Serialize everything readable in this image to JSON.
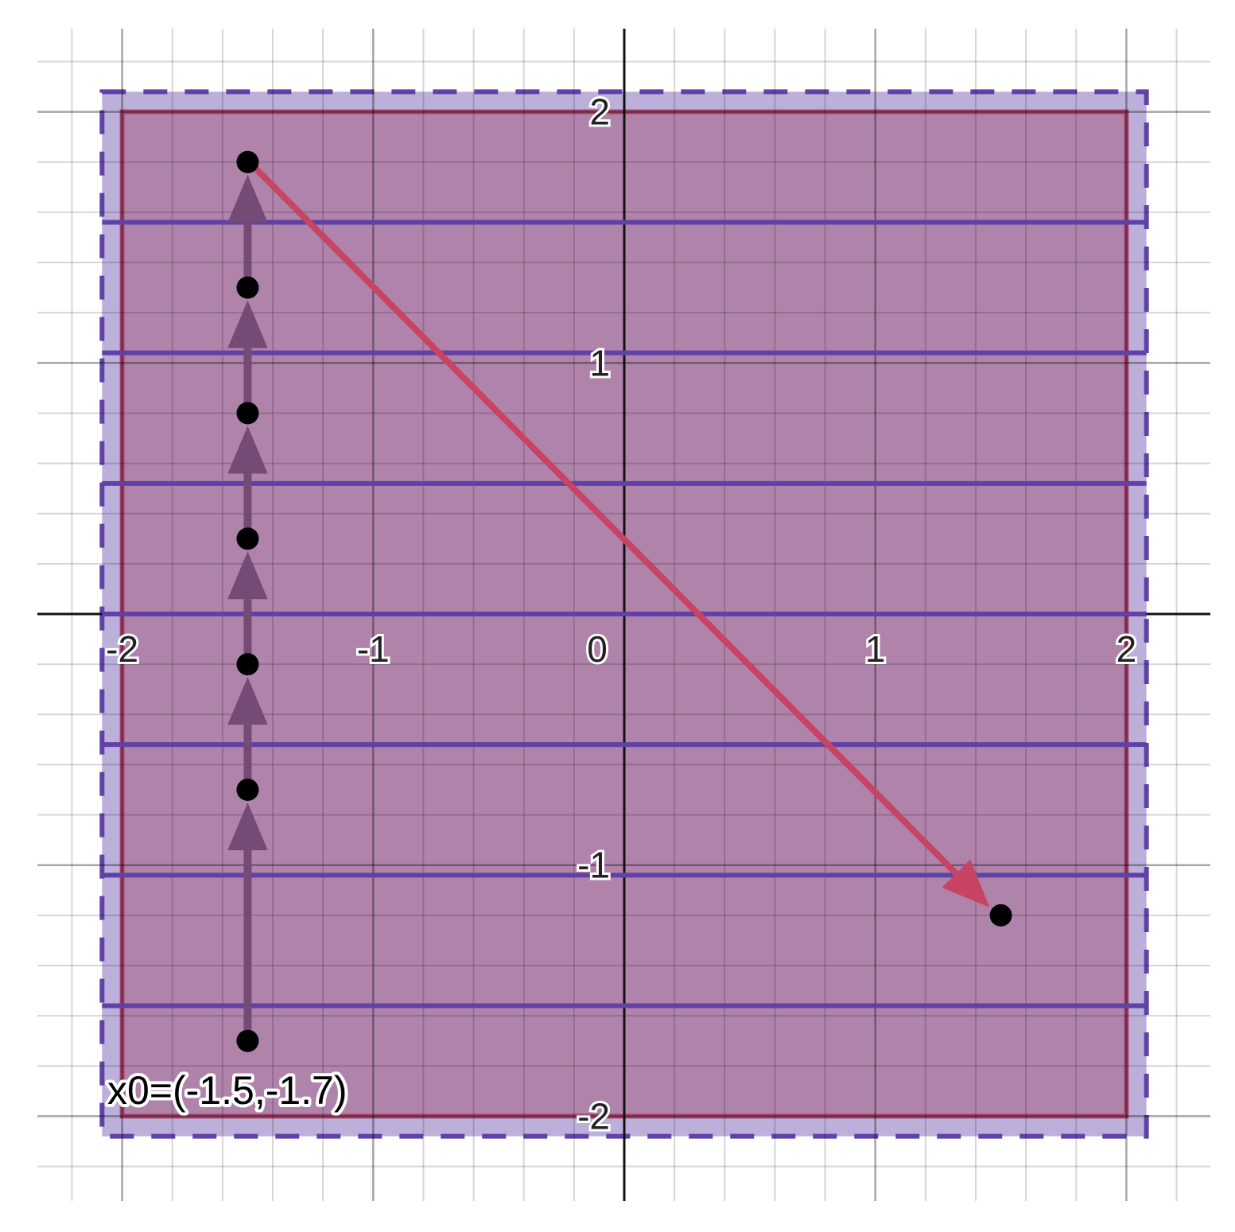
{
  "chart_data": {
    "type": "scatter",
    "xlim": [
      -2.2,
      2.33
    ],
    "ylim": [
      -2.33,
      2.33
    ],
    "grid": true,
    "minor_grid_step": 0.2,
    "x_ticks": [
      "-2",
      "-1",
      "0",
      "1",
      "2"
    ],
    "x_tick_values": [
      -2,
      -1,
      0,
      1,
      2
    ],
    "y_ticks": [
      "2",
      "1",
      "-1",
      "-2"
    ],
    "y_tick_values": [
      2,
      1,
      -1,
      -2
    ],
    "regions": [
      {
        "kind": "dashed-square",
        "x": [
          -2.08,
          2.08
        ],
        "y": [
          -2.08,
          2.08
        ],
        "color": "#6042a6"
      },
      {
        "kind": "square",
        "x": [
          -2,
          2
        ],
        "y": [
          -2,
          2
        ],
        "color": "#c74465"
      }
    ],
    "horizontal_lines": {
      "y": [
        1.56,
        1.04,
        0.52,
        0,
        -0.52,
        -1.04,
        -1.56
      ],
      "x_range": [
        -2.08,
        2.08
      ],
      "color": "#6042a6"
    },
    "points": [
      {
        "x": -1.5,
        "y": -1.7
      },
      {
        "x": -1.5,
        "y": -0.7
      },
      {
        "x": -1.5,
        "y": -0.2
      },
      {
        "x": -1.5,
        "y": 0.3
      },
      {
        "x": -1.5,
        "y": 0.8
      },
      {
        "x": -1.5,
        "y": 1.3
      },
      {
        "x": -1.5,
        "y": 1.8
      },
      {
        "x": 1.5,
        "y": -1.2
      }
    ],
    "vertical_arrows": {
      "x": -1.5,
      "y": [
        -1.7,
        -0.7,
        -0.2,
        0.3,
        0.8,
        1.3,
        1.8
      ],
      "color": "#754a74"
    },
    "red_arrow": {
      "from": [
        -1.5,
        1.8
      ],
      "to": [
        1.5,
        -1.2
      ],
      "color": "#c74465"
    },
    "point_label": {
      "text": "x0=(-1.5,-1.7)",
      "x": -1.5,
      "y": -1.7
    }
  }
}
